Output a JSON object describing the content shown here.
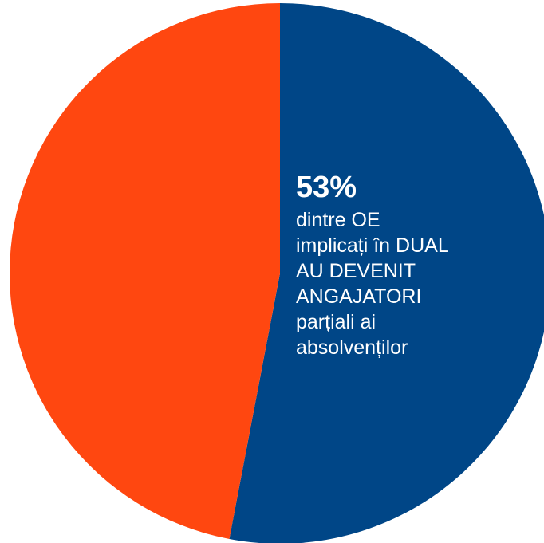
{
  "chart_data": {
    "type": "pie",
    "title": "",
    "slices": [
      {
        "value": 53,
        "color": "#004687"
      },
      {
        "value": 47,
        "color": "#FF4710"
      }
    ],
    "label": {
      "percent": "53%",
      "lines": [
        "dintre OE",
        "implicați în DUAL",
        "AU DEVENIT",
        "ANGAJATORI",
        "parțiali ai",
        "absolvenților"
      ]
    }
  }
}
